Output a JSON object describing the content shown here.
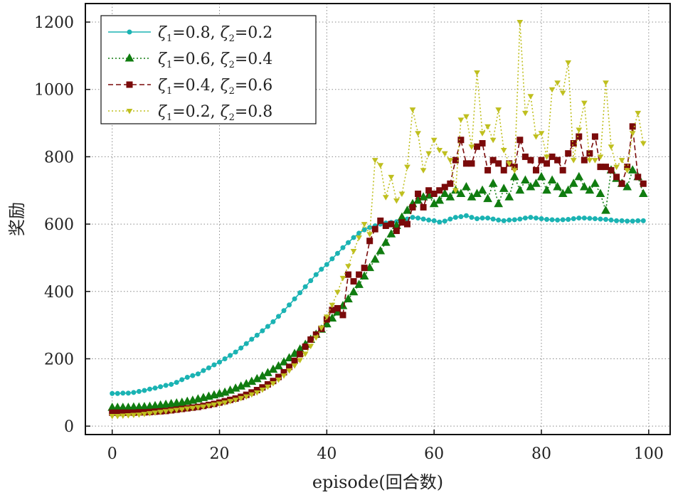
{
  "chart_data": {
    "type": "line",
    "title": "",
    "xlabel": "episode(回合数)",
    "ylabel": "奖励",
    "xlim": [
      -5,
      104
    ],
    "ylim": [
      -25,
      1255
    ],
    "xticks": [
      0,
      20,
      40,
      60,
      80,
      100
    ],
    "yticks": [
      0,
      200,
      400,
      600,
      800,
      1000,
      1200
    ],
    "grid": true,
    "legend_position": "top-left",
    "x": [
      0,
      1,
      2,
      3,
      4,
      5,
      6,
      7,
      8,
      9,
      10,
      11,
      12,
      13,
      14,
      15,
      16,
      17,
      18,
      19,
      20,
      21,
      22,
      23,
      24,
      25,
      26,
      27,
      28,
      29,
      30,
      31,
      32,
      33,
      34,
      35,
      36,
      37,
      38,
      39,
      40,
      41,
      42,
      43,
      44,
      45,
      46,
      47,
      48,
      49,
      50,
      51,
      52,
      53,
      54,
      55,
      56,
      57,
      58,
      59,
      60,
      61,
      62,
      63,
      64,
      65,
      66,
      67,
      68,
      69,
      70,
      71,
      72,
      73,
      74,
      75,
      76,
      77,
      78,
      79,
      80,
      81,
      82,
      83,
      84,
      85,
      86,
      87,
      88,
      89,
      90,
      91,
      92,
      93,
      94,
      95,
      96,
      97,
      98,
      99
    ],
    "series": [
      {
        "name": "ζ1=0.8, ζ2=0.2",
        "legend_parts": [
          "ζ",
          "1",
          "=0.8, ",
          "ζ",
          "2",
          "=0.2"
        ],
        "color": "#1bb3b3",
        "marker": "circle",
        "dash": "solid",
        "values": [
          97,
          97,
          98,
          98,
          100,
          103,
          106,
          110,
          113,
          117,
          121,
          124,
          130,
          138,
          145,
          150,
          155,
          165,
          173,
          182,
          190,
          200,
          210,
          220,
          232,
          245,
          258,
          270,
          283,
          296,
          310,
          326,
          343,
          360,
          378,
          396,
          414,
          432,
          450,
          466,
          480,
          497,
          513,
          530,
          545,
          560,
          573,
          583,
          590,
          595,
          600,
          603,
          605,
          607,
          612,
          615,
          620,
          618,
          615,
          612,
          610,
          606,
          609,
          615,
          620,
          622,
          625,
          620,
          616,
          618,
          618,
          615,
          612,
          610,
          612,
          613,
          615,
          618,
          620,
          618,
          616,
          614,
          613,
          612,
          613,
          614,
          616,
          618,
          618,
          617,
          616,
          615,
          614,
          612,
          610,
          610,
          609,
          609,
          610,
          610
        ]
      },
      {
        "name": "ζ1=0.6, ζ2=0.4",
        "legend_parts": [
          "ζ",
          "1",
          "=0.6, ",
          "ζ",
          "2",
          "=0.4"
        ],
        "color": "#107c10",
        "marker": "triangle",
        "dash": "dot",
        "values": [
          55,
          55,
          55,
          55,
          56,
          56,
          57,
          58,
          60,
          62,
          64,
          66,
          68,
          70,
          73,
          76,
          80,
          84,
          88,
          92,
          96,
          100,
          106,
          112,
          118,
          125,
          132,
          140,
          148,
          158,
          168,
          178,
          190,
          202,
          215,
          228,
          242,
          257,
          272,
          287,
          303,
          320,
          338,
          357,
          377,
          398,
          420,
          445,
          470,
          495,
          520,
          545,
          570,
          595,
          620,
          640,
          660,
          670,
          680,
          685,
          660,
          670,
          690,
          680,
          700,
          690,
          710,
          680,
          690,
          700,
          675,
          720,
          660,
          705,
          680,
          740,
          700,
          730,
          710,
          720,
          740,
          700,
          730,
          710,
          690,
          700,
          720,
          740,
          710,
          700,
          720,
          690,
          640,
          760,
          735,
          720,
          710,
          760,
          740,
          690
        ]
      },
      {
        "name": "ζ1=0.4, ζ2=0.6",
        "legend_parts": [
          "ζ",
          "1",
          "=0.4, ",
          "ζ",
          "2",
          "=0.6"
        ],
        "color": "#7a0a0a",
        "marker": "square",
        "dash": "dash",
        "values": [
          40,
          40,
          40,
          40,
          40,
          41,
          41,
          42,
          43,
          44,
          45,
          47,
          49,
          51,
          53,
          55,
          57,
          60,
          63,
          66,
          70,
          74,
          78,
          82,
          87,
          93,
          100,
          107,
          115,
          124,
          134,
          146,
          160,
          176,
          194,
          214,
          236,
          257,
          272,
          289,
          317,
          345,
          350,
          330,
          450,
          430,
          450,
          470,
          550,
          585,
          610,
          595,
          600,
          580,
          605,
          600,
          650,
          690,
          650,
          700,
          690,
          700,
          710,
          720,
          790,
          850,
          780,
          780,
          830,
          840,
          760,
          790,
          780,
          760,
          780,
          770,
          850,
          800,
          790,
          760,
          790,
          780,
          800,
          790,
          760,
          810,
          840,
          860,
          790,
          810,
          860,
          770,
          770,
          760,
          740,
          720,
          770,
          890,
          740,
          720
        ]
      },
      {
        "name": "ζ1=0.2, ζ2=0.8",
        "legend_parts": [
          "ζ",
          "1",
          "=0.2, ",
          "ζ",
          "2",
          "=0.8"
        ],
        "color": "#bfbf1f",
        "marker": "triangle-down",
        "dash": "dot",
        "values": [
          30,
          30,
          31,
          32,
          33,
          34,
          36,
          38,
          40,
          42,
          44,
          46,
          48,
          50,
          52,
          54,
          56,
          58,
          61,
          64,
          67,
          70,
          74,
          78,
          83,
          88,
          94,
          100,
          108,
          117,
          127,
          138,
          150,
          165,
          180,
          196,
          215,
          238,
          263,
          292,
          325,
          360,
          398,
          440,
          475,
          520,
          560,
          600,
          570,
          790,
          775,
          680,
          740,
          670,
          690,
          770,
          940,
          870,
          760,
          810,
          850,
          820,
          810,
          790,
          700,
          910,
          920,
          830,
          1050,
          870,
          890,
          850,
          940,
          820,
          780,
          760,
          1200,
          930,
          980,
          860,
          870,
          800,
          1000,
          1020,
          990,
          1080,
          790,
          880,
          960,
          790,
          790,
          800,
          1020,
          830,
          770,
          790,
          760,
          870,
          930,
          840
        ]
      }
    ]
  }
}
